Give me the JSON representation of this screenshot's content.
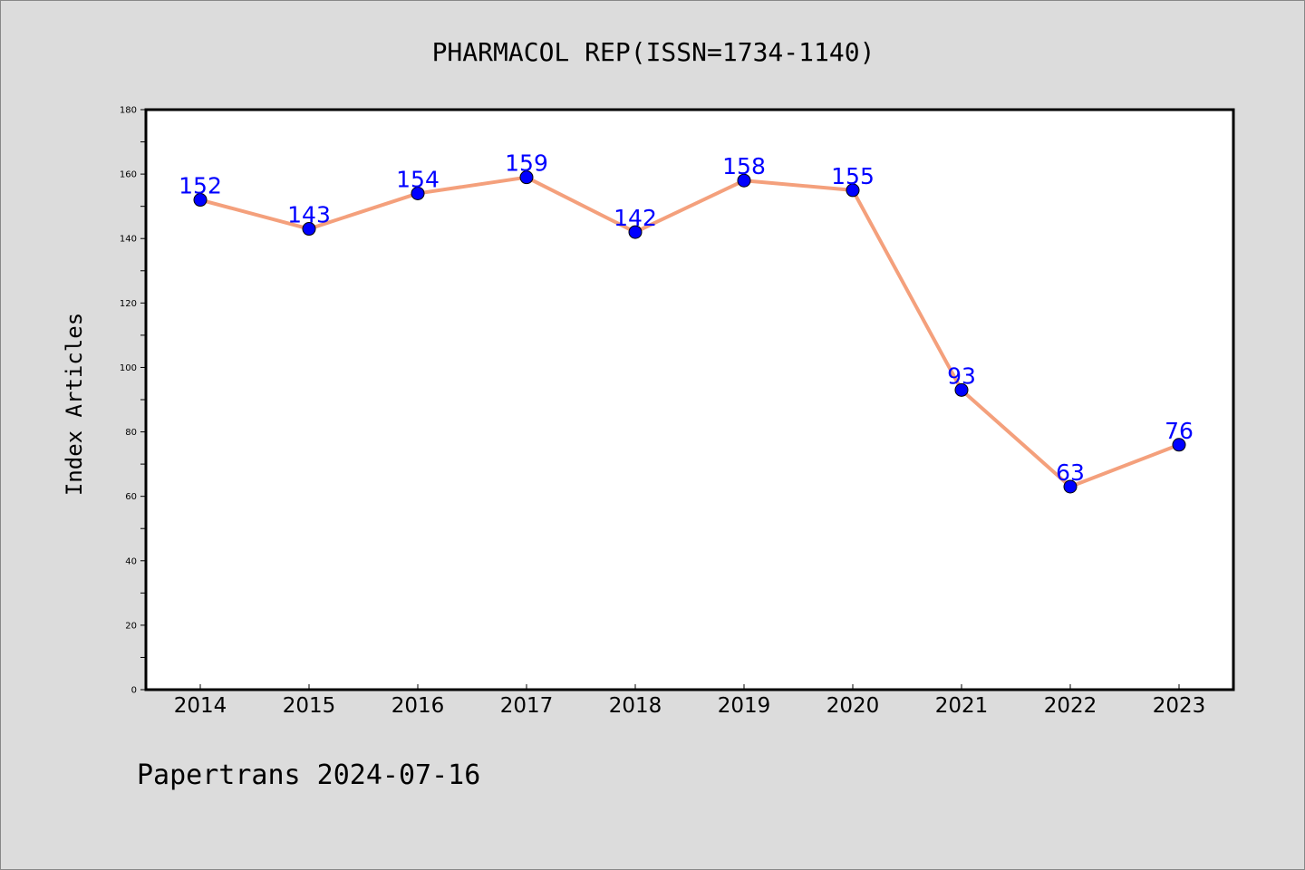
{
  "chart_data": {
    "type": "line",
    "title": "PHARMACOL REP(ISSN=1734-1140)",
    "xlabel": "",
    "ylabel": "Index Articles",
    "categories": [
      "2014",
      "2015",
      "2016",
      "2017",
      "2018",
      "2019",
      "2020",
      "2021",
      "2022",
      "2023"
    ],
    "series": [
      {
        "values": [
          152,
          143,
          154,
          159,
          142,
          158,
          155,
          93,
          63,
          76
        ]
      }
    ],
    "ylim": [
      0,
      180
    ],
    "yticks": [
      0,
      20,
      40,
      60,
      80,
      100,
      120,
      140,
      160,
      180
    ],
    "grid": false,
    "data_labels": true,
    "colors": {
      "line": "#f4a07c",
      "marker": "#0000ff",
      "label": "#0000ff",
      "background": "#dcdcdc",
      "plot_background": "#ffffff"
    }
  },
  "footer": "Papertrans 2024-07-16"
}
